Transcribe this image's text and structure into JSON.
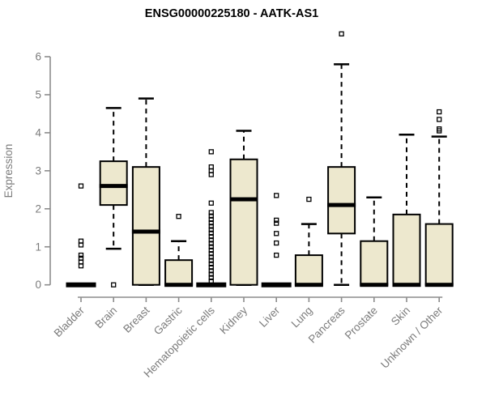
{
  "chart_data": {
    "type": "boxplot",
    "title": "ENSG00000225180 - AATK-AS1",
    "ylabel": "Expression",
    "xlabel": "",
    "yticks": [
      0,
      1,
      2,
      3,
      4,
      5,
      6
    ],
    "ylim": [
      -0.15,
      6.7
    ],
    "grid": false,
    "legend": "none",
    "categories": [
      "Bladder",
      "Brain",
      "Breast",
      "Gastric",
      "Hematopoietic cells",
      "Kidney",
      "Liver",
      "Lung",
      "Pancreas",
      "Prostate",
      "Skin",
      "Unknown / Other"
    ],
    "boxes": [
      {
        "category": "Bladder",
        "q1": 0,
        "median": 0,
        "q3": 0,
        "whisker_low": 0,
        "whisker_high": 0,
        "outliers": [
          0.5,
          0.6,
          0.7,
          0.78,
          1.05,
          1.15,
          2.6
        ]
      },
      {
        "category": "Brain",
        "q1": 2.1,
        "median": 2.6,
        "q3": 3.25,
        "whisker_low": 0.95,
        "whisker_high": 4.65,
        "outliers": [
          0
        ]
      },
      {
        "category": "Breast",
        "q1": 0,
        "median": 1.4,
        "q3": 3.1,
        "whisker_low": 0,
        "whisker_high": 4.9,
        "outliers": []
      },
      {
        "category": "Gastric",
        "q1": 0,
        "median": 0,
        "q3": 0.65,
        "whisker_low": 0,
        "whisker_high": 1.15,
        "outliers": [
          1.8
        ]
      },
      {
        "category": "Hematopoietic cells",
        "q1": 0,
        "median": 0,
        "q3": 0,
        "whisker_low": 0,
        "whisker_high": 0,
        "outliers": [
          0.1,
          0.19,
          0.28,
          0.37,
          0.46,
          0.55,
          0.64,
          0.73,
          0.82,
          0.91,
          1.0,
          1.09,
          1.18,
          1.27,
          1.36,
          1.45,
          1.54,
          1.63,
          1.72,
          1.81,
          1.9,
          2.15,
          2.9,
          3.0,
          3.1,
          3.5
        ]
      },
      {
        "category": "Kidney",
        "q1": 0,
        "median": 2.25,
        "q3": 3.3,
        "whisker_low": 0,
        "whisker_high": 4.05,
        "outliers": []
      },
      {
        "category": "Liver",
        "q1": 0,
        "median": 0,
        "q3": 0,
        "whisker_low": 0,
        "whisker_high": 0,
        "outliers": [
          0.78,
          1.1,
          1.35,
          1.62,
          1.7,
          2.35
        ]
      },
      {
        "category": "Lung",
        "q1": 0,
        "median": 0,
        "q3": 0.78,
        "whisker_low": 0,
        "whisker_high": 1.6,
        "outliers": [
          2.25
        ]
      },
      {
        "category": "Pancreas",
        "q1": 1.35,
        "median": 2.1,
        "q3": 3.1,
        "whisker_low": 0,
        "whisker_high": 5.8,
        "outliers": [
          6.6
        ]
      },
      {
        "category": "Prostate",
        "q1": 0,
        "median": 0,
        "q3": 1.15,
        "whisker_low": 0,
        "whisker_high": 2.3,
        "outliers": []
      },
      {
        "category": "Skin",
        "q1": 0,
        "median": 0,
        "q3": 1.85,
        "whisker_low": 0,
        "whisker_high": 3.95,
        "outliers": []
      },
      {
        "category": "Unknown / Other",
        "q1": 0,
        "median": 0,
        "q3": 1.6,
        "whisker_low": 0,
        "whisker_high": 3.9,
        "outliers": [
          4.05,
          4.1,
          4.35,
          4.55
        ]
      }
    ],
    "colors": {
      "box_fill": "#ede8ce",
      "box_border": "#000000",
      "median": "#000000",
      "whisker": "#000000",
      "outlier": "#000000",
      "axis": "#8c8c8c",
      "tick_text": "#7b7b7b",
      "title_text": "#000000",
      "background": "#ffffff"
    }
  }
}
